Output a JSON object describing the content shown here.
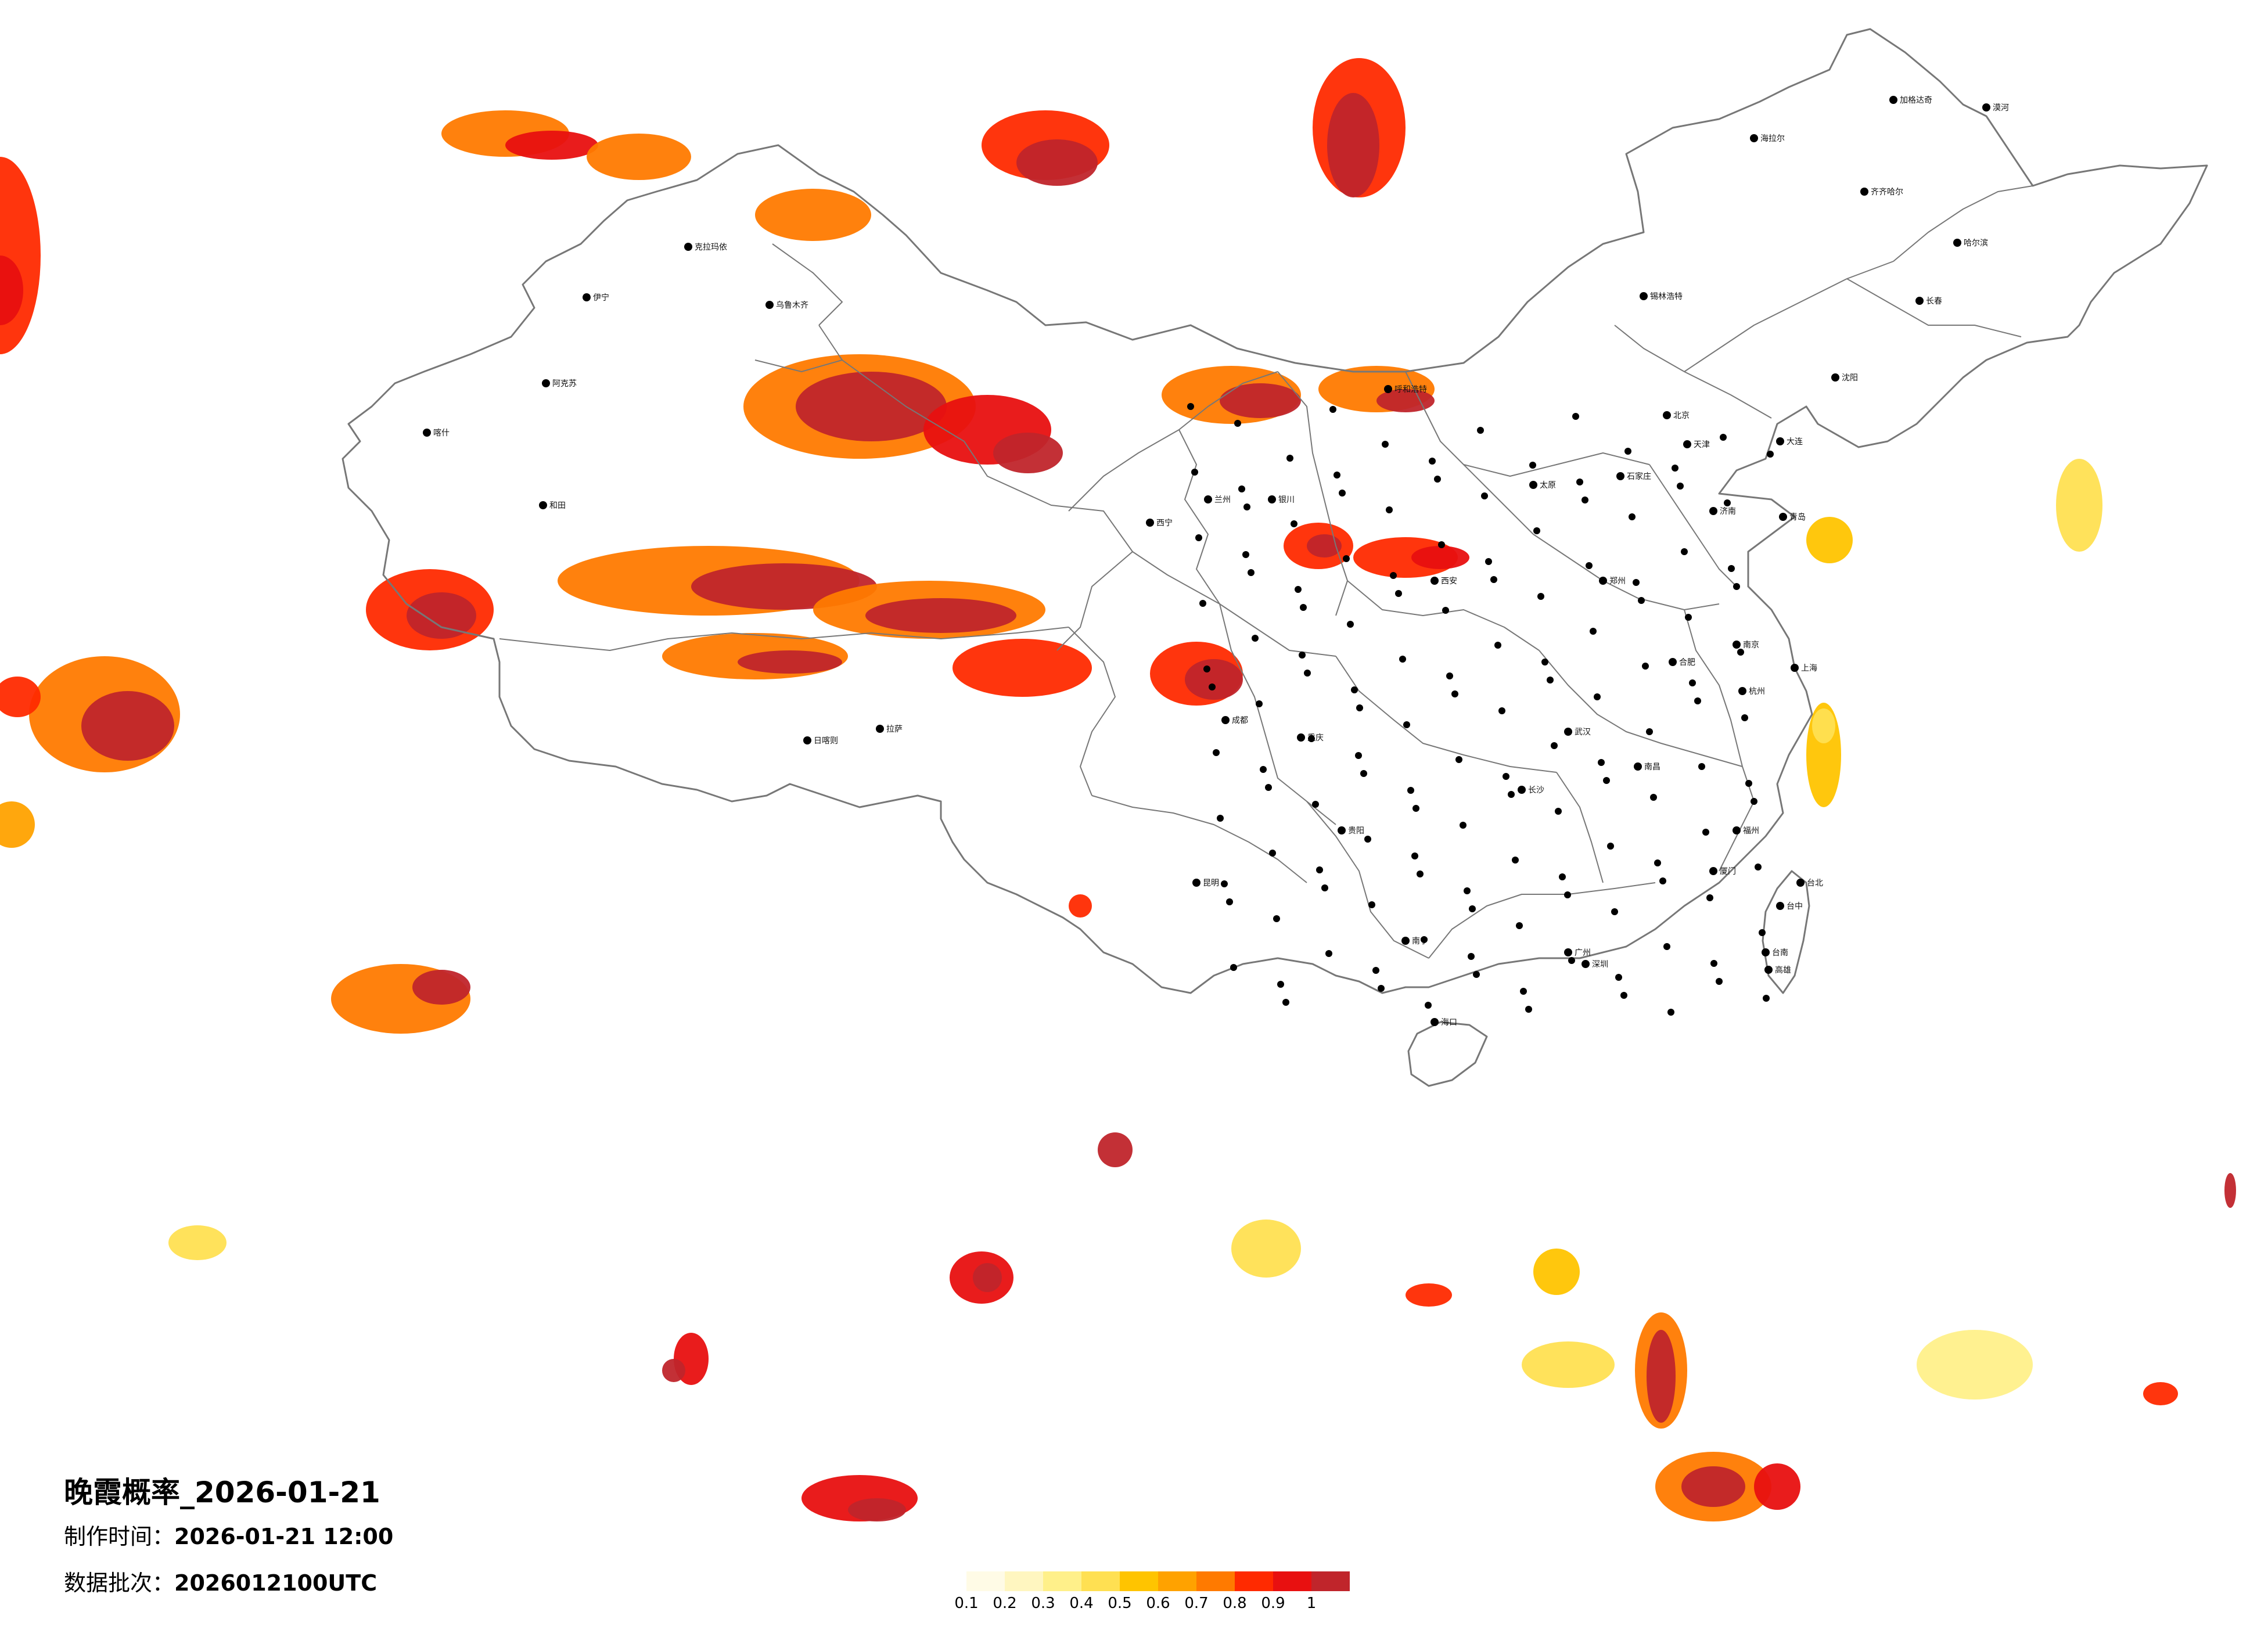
{
  "title": "晚霞概率_2026-01-21",
  "make_time": {
    "label": "制作时间：",
    "value": "2026-01-21 12:00"
  },
  "data_batch": {
    "label": "数据批次：",
    "value": "2026012100UTC"
  },
  "legend": {
    "ticks": [
      "0.1",
      "0.2",
      "0.3",
      "0.4",
      "0.5",
      "0.6",
      "0.7",
      "0.8",
      "0.9",
      "1"
    ],
    "colors": [
      "#fffbe6",
      "#fff6c0",
      "#fff08a",
      "#ffe052",
      "#ffc400",
      "#ffa200",
      "#ff7a00",
      "#ff2a00",
      "#e81010",
      "#c0252b"
    ]
  },
  "colors": {
    "boundary": "#777777",
    "city_dot": "#000000"
  },
  "cities": [
    {
      "name": "漠河"
    },
    {
      "name": "加格达奇"
    },
    {
      "name": "海拉尔"
    },
    {
      "name": "齐齐哈尔"
    },
    {
      "name": "哈尔滨"
    },
    {
      "name": "长春"
    },
    {
      "name": "沈阳"
    },
    {
      "name": "大连"
    },
    {
      "name": "北京"
    },
    {
      "name": "天津"
    },
    {
      "name": "石家庄"
    },
    {
      "name": "太原"
    },
    {
      "name": "呼和浩特"
    },
    {
      "name": "锡林浩特"
    },
    {
      "name": "济南"
    },
    {
      "name": "青岛"
    },
    {
      "name": "郑州"
    },
    {
      "name": "西安"
    },
    {
      "name": "兰州"
    },
    {
      "name": "西宁"
    },
    {
      "name": "银川"
    },
    {
      "name": "乌鲁木齐"
    },
    {
      "name": "克拉玛依"
    },
    {
      "name": "伊宁"
    },
    {
      "name": "阿克苏"
    },
    {
      "name": "喀什"
    },
    {
      "name": "和田"
    },
    {
      "name": "拉萨"
    },
    {
      "name": "日喀则"
    },
    {
      "name": "成都"
    },
    {
      "name": "重庆"
    },
    {
      "name": "贵阳"
    },
    {
      "name": "昆明"
    },
    {
      "name": "南宁"
    },
    {
      "name": "广州"
    },
    {
      "name": "深圳"
    },
    {
      "name": "海口"
    },
    {
      "name": "长沙"
    },
    {
      "name": "武汉"
    },
    {
      "name": "南昌"
    },
    {
      "name": "福州"
    },
    {
      "name": "厦门"
    },
    {
      "name": "杭州"
    },
    {
      "name": "上海"
    },
    {
      "name": "南京"
    },
    {
      "name": "合肥"
    },
    {
      "name": "台北"
    },
    {
      "name": "台中"
    },
    {
      "name": "台南"
    },
    {
      "name": "高雄"
    }
  ]
}
